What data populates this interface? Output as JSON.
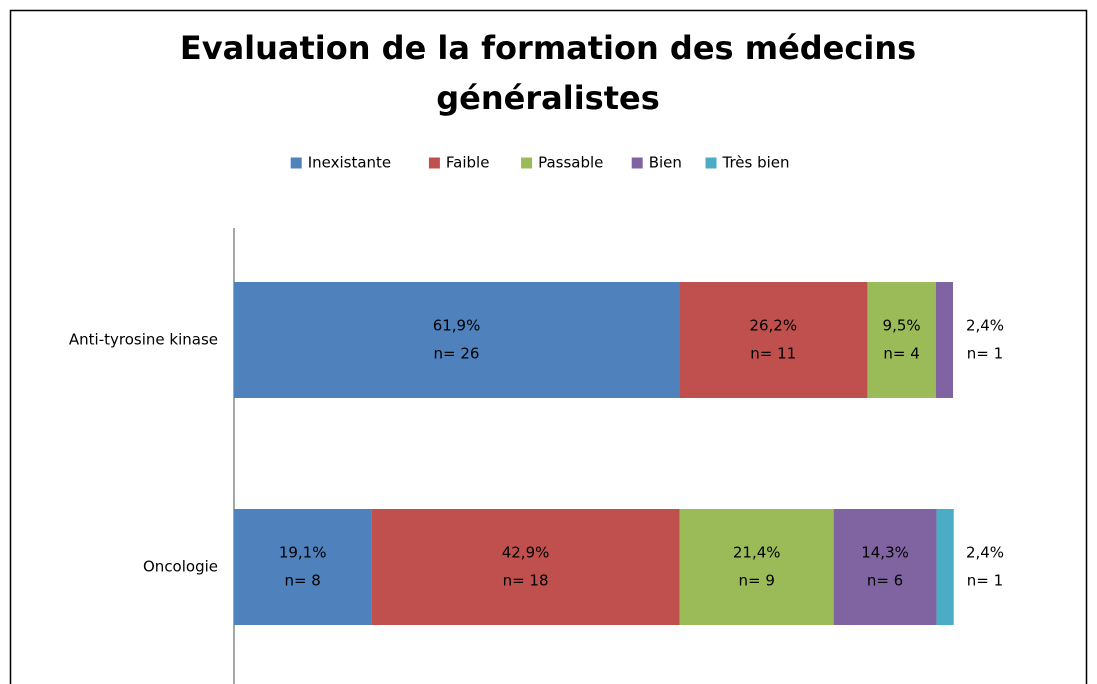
{
  "chart_data": {
    "type": "stacked-bar-horizontal",
    "title": "Evaluation de la formation des médecins généralistes",
    "categories": [
      "Anti-tyrosine kinase",
      "Oncologie"
    ],
    "xlim": [
      0,
      100
    ],
    "legend": "top",
    "series": [
      {
        "name": "Inexistante",
        "color": "#4f81bd",
        "values": [
          61.9,
          19.1
        ],
        "value_labels": [
          "61,9%",
          "19,1%"
        ],
        "counts": [
          26,
          8
        ],
        "count_labels": [
          "n= 26",
          "n= 8"
        ]
      },
      {
        "name": "Faible",
        "color": "#c0504d",
        "values": [
          26.2,
          42.9
        ],
        "value_labels": [
          "26,2%",
          "42,9%"
        ],
        "counts": [
          11,
          18
        ],
        "count_labels": [
          "n= 11",
          "n= 18"
        ]
      },
      {
        "name": "Passable",
        "color": "#9bbb59",
        "values": [
          9.5,
          21.4
        ],
        "value_labels": [
          "9,5%",
          "21,4%"
        ],
        "counts": [
          4,
          9
        ],
        "count_labels": [
          "n= 4",
          "n= 9"
        ]
      },
      {
        "name": "Bien",
        "color": "#8064a2",
        "values": [
          2.4,
          14.3
        ],
        "value_labels": [
          "2,4%",
          "14,3%"
        ],
        "counts": [
          1,
          6
        ],
        "count_labels": [
          "n= 1",
          "n= 6"
        ]
      },
      {
        "name": "Très bien",
        "color": "#4bacc6",
        "values": [
          0,
          2.4
        ],
        "value_labels": [
          null,
          "2,4%"
        ],
        "counts": [
          0,
          1
        ],
        "count_labels": [
          null,
          "n= 1"
        ]
      }
    ]
  }
}
